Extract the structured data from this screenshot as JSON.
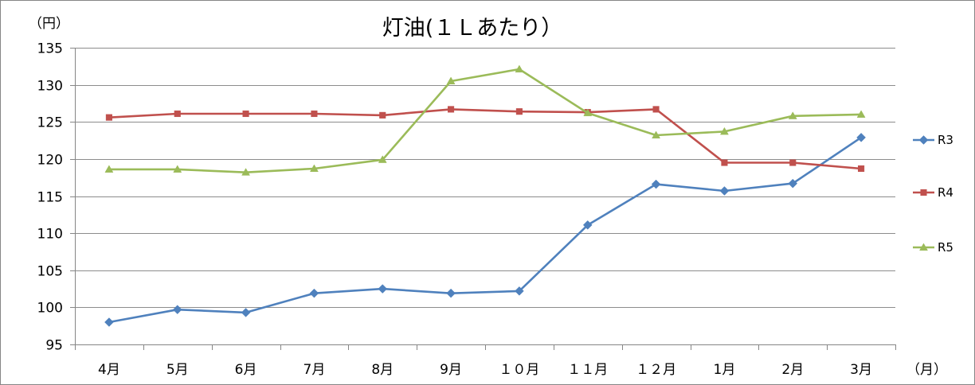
{
  "chart_data": {
    "type": "line",
    "title": "灯油(１Ｌあたり）",
    "ylabel": "（円）",
    "xlabel": "（月）",
    "categories": [
      "4月",
      "5月",
      "6月",
      "7月",
      "8月",
      "9月",
      "１０月",
      "１１月",
      "１２月",
      "1月",
      "2月",
      "3月"
    ],
    "ylim": [
      95,
      135
    ],
    "yticks": [
      95,
      100,
      105,
      110,
      115,
      120,
      125,
      130,
      135
    ],
    "grid": true,
    "legend": "right",
    "series": [
      {
        "name": "R3",
        "color": "#4F81BD",
        "marker": "diamond",
        "values": [
          98.0,
          99.7,
          99.3,
          101.9,
          102.5,
          101.9,
          102.2,
          111.1,
          116.6,
          115.7,
          116.7,
          122.9
        ]
      },
      {
        "name": "R4",
        "color": "#C0504D",
        "marker": "square",
        "values": [
          125.6,
          126.1,
          126.1,
          126.1,
          125.9,
          126.7,
          126.4,
          126.3,
          126.7,
          119.5,
          119.5,
          118.7
        ]
      },
      {
        "name": "R5",
        "color": "#9BBB59",
        "marker": "triangle",
        "values": [
          118.6,
          118.6,
          118.2,
          118.7,
          119.9,
          130.5,
          132.1,
          126.2,
          123.2,
          123.7,
          125.8,
          126.0
        ]
      }
    ]
  }
}
